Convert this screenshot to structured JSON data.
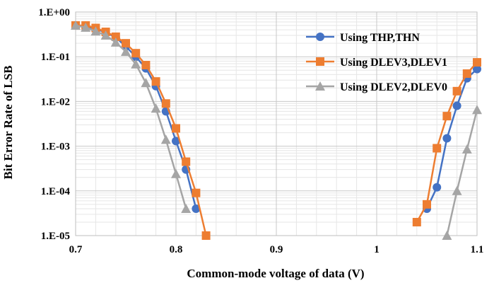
{
  "chart_data": {
    "type": "line",
    "title": "",
    "xlabel": "Common-mode voltage of data (V)",
    "ylabel": "Bit Error Rate of LSB",
    "xlim": [
      0.7,
      1.1
    ],
    "ylim": [
      1e-05,
      1
    ],
    "y_scale": "log",
    "x_ticks": [
      0.7,
      0.8,
      0.9,
      1.0,
      1.1
    ],
    "x_tick_labels": [
      "0.7",
      "0.8",
      "0.9",
      "1",
      "1.1"
    ],
    "y_ticks": [
      1,
      0.1,
      0.01,
      0.001,
      0.0001,
      1e-05
    ],
    "y_tick_labels": [
      "1.E+00",
      "1.E-01",
      "1.E-02",
      "1.E-03",
      "1.E-04",
      "1.E-05"
    ],
    "grid": true,
    "minor_grid": true,
    "legend_position": "top-right",
    "series": [
      {
        "name": "Using THP,THN",
        "color": "#4472C4",
        "marker": "circle",
        "segments": [
          {
            "x": [
              0.7,
              0.71,
              0.72,
              0.73,
              0.74,
              0.75,
              0.76,
              0.77,
              0.78,
              0.79,
              0.8,
              0.81,
              0.82
            ],
            "y": [
              0.5,
              0.48,
              0.42,
              0.35,
              0.27,
              0.17,
              0.1,
              0.055,
              0.022,
              0.006,
              0.0013,
              0.0003,
              4e-05
            ]
          },
          {
            "x": [
              1.05,
              1.06,
              1.07,
              1.08,
              1.09,
              1.1
            ],
            "y": [
              4e-05,
              0.00012,
              0.0015,
              0.008,
              0.033,
              0.053
            ]
          }
        ]
      },
      {
        "name": "Using DLEV3,DLEV1",
        "color": "#ED7D31",
        "marker": "square",
        "segments": [
          {
            "x": [
              0.7,
              0.71,
              0.72,
              0.73,
              0.74,
              0.75,
              0.76,
              0.77,
              0.78,
              0.79,
              0.8,
              0.81,
              0.82,
              0.83
            ],
            "y": [
              0.5,
              0.5,
              0.44,
              0.36,
              0.28,
              0.2,
              0.12,
              0.065,
              0.028,
              0.009,
              0.0025,
              0.00045,
              9e-05,
              1e-05
            ]
          },
          {
            "x": [
              1.04,
              1.05,
              1.06,
              1.07,
              1.08,
              1.09,
              1.1
            ],
            "y": [
              2e-05,
              5e-05,
              0.0009,
              0.0047,
              0.017,
              0.042,
              0.075
            ]
          }
        ]
      },
      {
        "name": "Using DLEV2,DLEV0",
        "color": "#A5A5A5",
        "marker": "triangle",
        "segments": [
          {
            "x": [
              0.7,
              0.71,
              0.72,
              0.73,
              0.74,
              0.75,
              0.76,
              0.77,
              0.78,
              0.79,
              0.8,
              0.81
            ],
            "y": [
              0.5,
              0.45,
              0.37,
              0.3,
              0.21,
              0.13,
              0.068,
              0.026,
              0.007,
              0.0014,
              0.00024,
              4e-05
            ]
          },
          {
            "x": [
              1.07,
              1.08,
              1.09,
              1.1
            ],
            "y": [
              1e-05,
              0.0001,
              0.00085,
              0.0065
            ]
          }
        ]
      }
    ]
  }
}
